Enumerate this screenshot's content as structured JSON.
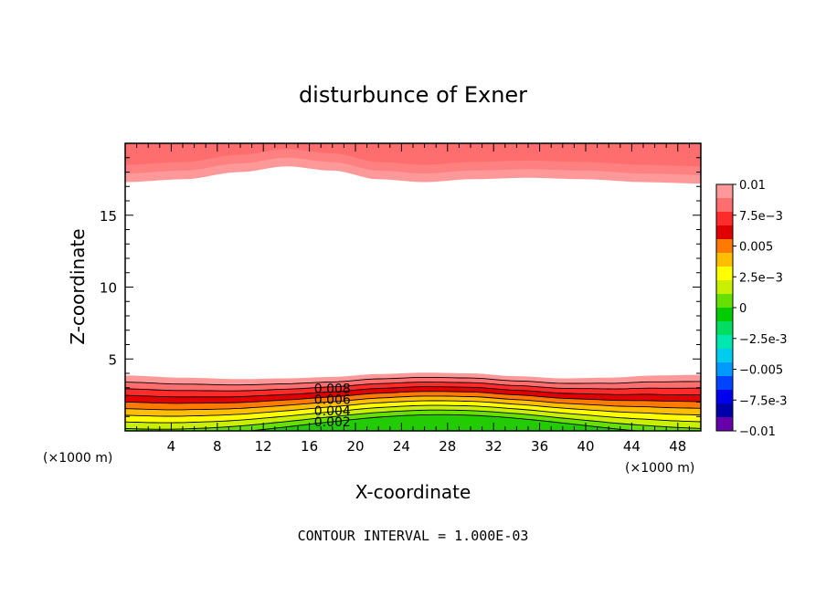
{
  "chart_data": {
    "type": "heatmap",
    "title": "disturbunce of Exner",
    "xlabel": "X-coordinate",
    "ylabel": "Z-coordinate",
    "x_unit_left": "(×1000 m)",
    "x_unit_right": "(×1000 m)",
    "xlim": [
      0,
      50
    ],
    "ylim": [
      0,
      20
    ],
    "x_ticks": [
      4,
      8,
      12,
      16,
      20,
      24,
      28,
      32,
      36,
      40,
      44,
      48
    ],
    "y_ticks": [
      5,
      10,
      15
    ],
    "contour_interval_text": "CONTOUR INTERVAL = 1.000E-03",
    "contour_labels": [
      {
        "text": "0.008",
        "x": 18,
        "y": 2.95
      },
      {
        "text": "0.006",
        "x": 18,
        "y": 2.2
      },
      {
        "text": "0.004",
        "x": 18,
        "y": 1.4
      },
      {
        "text": "0.002",
        "x": 18,
        "y": 0.65
      }
    ],
    "colorbar": {
      "labels": [
        "0.01",
        "7.5e-3",
        "0.005",
        "2.5e-3",
        "0",
        "-2.5e-3",
        "-0.005",
        "-7.5e-3",
        "-0.01"
      ],
      "colors": [
        "#ff9999",
        "#ff6e6e",
        "#ff2a2a",
        "#e00000",
        "#ff7a00",
        "#ffbf00",
        "#ffff00",
        "#c8f000",
        "#66e000",
        "#00cc00",
        "#00dd60",
        "#00e8b0",
        "#00ccee",
        "#0099ff",
        "#0044ff",
        "#0000ee",
        "#0000aa",
        "#6600aa"
      ]
    },
    "top_region": {
      "description_levels": [
        0.01,
        0.009,
        0.008
      ],
      "boundary_x": [
        0,
        5,
        10,
        14,
        18,
        22,
        26,
        30,
        35,
        40,
        45,
        50
      ],
      "boundary_z": [
        17.3,
        17.5,
        18.0,
        18.4,
        18.1,
        17.5,
        17.3,
        17.5,
        17.6,
        17.5,
        17.3,
        17.2
      ]
    },
    "bottom_region": {
      "levels": [
        0.009,
        0.008,
        0.007,
        0.006,
        0.005,
        0.004,
        0.003,
        0.002,
        0.001
      ],
      "top_x": [
        0,
        5,
        10,
        14,
        18,
        22,
        26,
        30,
        34,
        38,
        42,
        46,
        50
      ],
      "top_z": [
        3.85,
        3.7,
        3.6,
        3.65,
        3.75,
        3.95,
        4.05,
        4.0,
        3.8,
        3.65,
        3.7,
        3.85,
        3.9
      ]
    }
  }
}
